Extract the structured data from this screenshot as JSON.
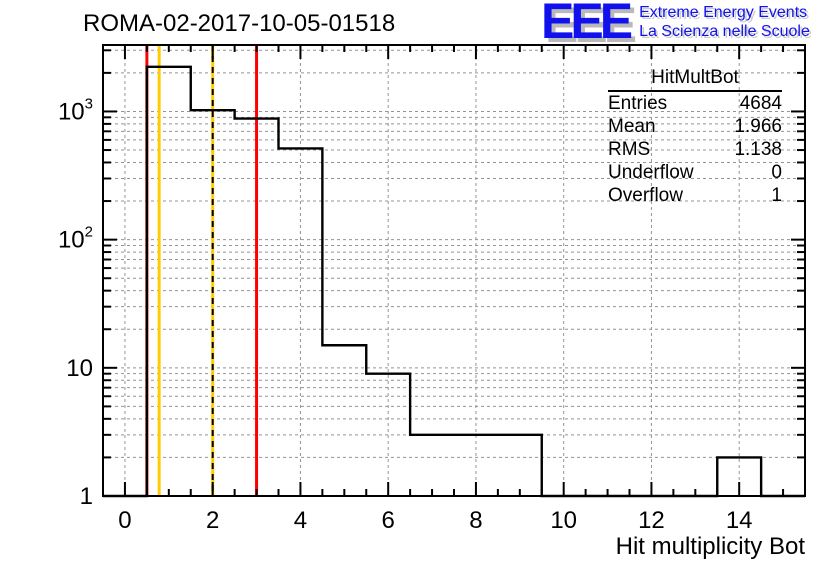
{
  "header": {
    "title": "ROMA-02-2017-10-05-01518"
  },
  "logo": {
    "acronym": "EEE",
    "line1": "Extreme Energy Events",
    "line2": "La Scienza nelle Scuole",
    "color": "#1111ee"
  },
  "stats_box": {
    "title": "HitMultBot",
    "rows": [
      [
        "Entries",
        "4684"
      ],
      [
        "Mean",
        "1.966"
      ],
      [
        "RMS",
        "1.138"
      ],
      [
        "Underflow",
        "0"
      ],
      [
        "Overflow",
        "1"
      ]
    ]
  },
  "chart_data": {
    "type": "bar",
    "title": "ROMA-02-2017-10-05-01518",
    "xlabel": "Hit multiplicity Bot",
    "ylabel": "",
    "x_range": [
      -0.5,
      15.5
    ],
    "y_scale": "log",
    "y_range": [
      1,
      3300
    ],
    "grid": true,
    "bin_centers": [
      0,
      1,
      2,
      3,
      4,
      5,
      6,
      7,
      8,
      9,
      10,
      11,
      12,
      13,
      14,
      15
    ],
    "values": [
      0,
      2229,
      1023,
      881,
      515,
      15,
      9,
      3,
      3,
      3,
      0,
      0,
      0,
      0,
      2,
      0
    ],
    "underflow": 0,
    "overflow": 1,
    "x_major_ticks": [
      0,
      2,
      4,
      6,
      8,
      10,
      12,
      14
    ],
    "y_tick_labels": [
      {
        "value": 1,
        "base": "1"
      },
      {
        "value": 10,
        "base": "10"
      },
      {
        "value": 100,
        "base": "10",
        "exp": "2"
      },
      {
        "value": 1000,
        "base": "10",
        "exp": "3"
      }
    ],
    "line_color": "#000000",
    "marker_lines": [
      {
        "name": "threshold-line-red-low",
        "x": 0.5,
        "color": "#ff0000",
        "style": "solid",
        "width": 3
      },
      {
        "name": "threshold-line-yellow-low",
        "x": 0.78,
        "color": "#ffcc00",
        "style": "solid",
        "width": 3
      },
      {
        "name": "threshold-line-yellow-high",
        "x": 2.0,
        "color": "#ffcc00",
        "style": "solid",
        "width": 3
      },
      {
        "name": "threshold-line-black-dashed",
        "x": 2.0,
        "color": "#000000",
        "style": "dashed",
        "width": 2
      },
      {
        "name": "threshold-line-red-high",
        "x": 3.0,
        "color": "#ff0000",
        "style": "solid",
        "width": 3
      }
    ]
  }
}
